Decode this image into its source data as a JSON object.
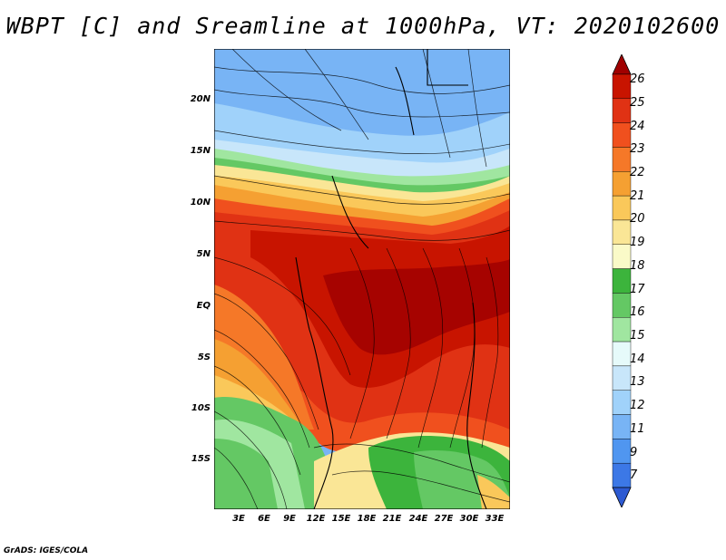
{
  "title": "WBPT [C] and Sreamline at 1000hPa, VT: 2020102600",
  "lat_labels": [
    "20N",
    "15N",
    "10N",
    "5N",
    "EQ",
    "5S",
    "10S",
    "15S"
  ],
  "lon_labels": [
    "3E",
    "6E",
    "9E",
    "12E",
    "15E",
    "18E",
    "21E",
    "24E",
    "27E",
    "30E",
    "33E"
  ],
  "colorbar": {
    "labels": [
      "26",
      "25",
      "24",
      "23",
      "22",
      "21",
      "20",
      "19",
      "18",
      "17",
      "16",
      "15",
      "14",
      "13",
      "12",
      "11",
      "9",
      "7"
    ],
    "colors": [
      "#a00000",
      "#c81400",
      "#e03214",
      "#f0501e",
      "#f57828",
      "#f5a032",
      "#fac85a",
      "#fae696",
      "#fafac8",
      "#3cb43c",
      "#64c864",
      "#a0e6a0",
      "#e6fafa",
      "#c8e6fa",
      "#a0d2fa",
      "#78b4f5",
      "#5096f0",
      "#3c78e6",
      "#2d5ad2"
    ]
  },
  "footer": "GrADS: IGES/COLA"
}
